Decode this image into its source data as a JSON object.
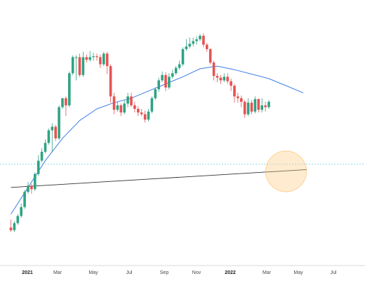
{
  "chart_data": {
    "type": "candlestick",
    "title": "",
    "xlabel": "",
    "ylabel": "",
    "x_ticks": [
      {
        "label": "2021",
        "date": "2021-01",
        "bold": true
      },
      {
        "label": "Mar",
        "date": "2021-03",
        "bold": false
      },
      {
        "label": "May",
        "date": "2021-05",
        "bold": false
      },
      {
        "label": "Jul",
        "date": "2021-07",
        "bold": false
      },
      {
        "label": "Sep",
        "date": "2021-09",
        "bold": false
      },
      {
        "label": "Nov",
        "date": "2021-11",
        "bold": false
      },
      {
        "label": "2022",
        "date": "2022-01",
        "bold": true
      },
      {
        "label": "Mar",
        "date": "2022-03",
        "bold": false
      },
      {
        "label": "May",
        "date": "2022-05",
        "bold": false
      },
      {
        "label": "Jul",
        "date": "2022-07",
        "bold": false
      }
    ],
    "x_range": [
      0,
      81
    ],
    "y_range": [
      0,
      100
    ],
    "candles": [
      [
        -5,
        15,
        12,
        24,
        10
      ],
      [
        -4,
        12,
        20,
        22,
        10
      ],
      [
        -3,
        20,
        28,
        30,
        18
      ],
      [
        -2,
        28,
        38,
        42,
        26
      ],
      [
        -1,
        38,
        55,
        57,
        36
      ],
      [
        0,
        55,
        62,
        66,
        53
      ],
      [
        1,
        62,
        58,
        64,
        53
      ],
      [
        2,
        58,
        75,
        77,
        56
      ],
      [
        3,
        75,
        90,
        96,
        73
      ],
      [
        4,
        90,
        100,
        104,
        88
      ],
      [
        5,
        100,
        110,
        114,
        98
      ],
      [
        6,
        110,
        124,
        126,
        108
      ],
      [
        7,
        124,
        128,
        132,
        100
      ],
      [
        8,
        128,
        115,
        130,
        112
      ],
      [
        9,
        115,
        150,
        152,
        113
      ],
      [
        10,
        150,
        160,
        160,
        148
      ],
      [
        11,
        160,
        152,
        162,
        140
      ],
      [
        12,
        152,
        188,
        190,
        150
      ],
      [
        13,
        188,
        206,
        208,
        186
      ],
      [
        14,
        206,
        206,
        208,
        180
      ],
      [
        15,
        206,
        186,
        210,
        184
      ],
      [
        16,
        186,
        206,
        212,
        184
      ],
      [
        17,
        206,
        203,
        209,
        200
      ],
      [
        18,
        203,
        206,
        213,
        201
      ],
      [
        19,
        206,
        207,
        211,
        202
      ],
      [
        20,
        207,
        206,
        210,
        202
      ],
      [
        21,
        206,
        198,
        209,
        194
      ],
      [
        22,
        198,
        210,
        212,
        196
      ],
      [
        23,
        210,
        196,
        212,
        187
      ],
      [
        24,
        196,
        162,
        198,
        155
      ],
      [
        25,
        162,
        147,
        166,
        142
      ],
      [
        26,
        147,
        152,
        156,
        145
      ],
      [
        27,
        152,
        144,
        154,
        140
      ],
      [
        28,
        144,
        154,
        158,
        142
      ],
      [
        29,
        154,
        162,
        166,
        150
      ],
      [
        30,
        162,
        152,
        166,
        150
      ],
      [
        31,
        152,
        148,
        156,
        144
      ],
      [
        32,
        148,
        144,
        151,
        140
      ],
      [
        33,
        144,
        142,
        148,
        140
      ],
      [
        34,
        142,
        136,
        146,
        133
      ],
      [
        35,
        136,
        145,
        148,
        134
      ],
      [
        36,
        145,
        160,
        162,
        143
      ],
      [
        37,
        160,
        170,
        172,
        158
      ],
      [
        38,
        170,
        180,
        183,
        167
      ],
      [
        39,
        180,
        186,
        190,
        178
      ],
      [
        40,
        186,
        172,
        189,
        168
      ],
      [
        41,
        172,
        184,
        188,
        170
      ],
      [
        42,
        184,
        188,
        192,
        182
      ],
      [
        43,
        188,
        194,
        196,
        186
      ],
      [
        44,
        194,
        198,
        202,
        192
      ],
      [
        45,
        198,
        215,
        217,
        196
      ],
      [
        46,
        215,
        218,
        226,
        213
      ],
      [
        47,
        218,
        221,
        228,
        216
      ],
      [
        48,
        221,
        224,
        228,
        218
      ],
      [
        49,
        224,
        226,
        229,
        220
      ],
      [
        50,
        226,
        230,
        232,
        224
      ],
      [
        51,
        230,
        220,
        233,
        217
      ],
      [
        52,
        220,
        215,
        222,
        212
      ],
      [
        53,
        215,
        200,
        216,
        198
      ],
      [
        54,
        200,
        185,
        202,
        180
      ],
      [
        55,
        185,
        183,
        188,
        178
      ],
      [
        56,
        183,
        180,
        186,
        176
      ],
      [
        57,
        180,
        184,
        188,
        178
      ],
      [
        58,
        184,
        179,
        188,
        176
      ],
      [
        59,
        179,
        174,
        182,
        168
      ],
      [
        60,
        174,
        162,
        176,
        155
      ],
      [
        61,
        162,
        160,
        166,
        155
      ],
      [
        62,
        160,
        156,
        163,
        150
      ],
      [
        63,
        156,
        142,
        158,
        138
      ],
      [
        64,
        142,
        155,
        160,
        140
      ],
      [
        65,
        155,
        145,
        158,
        142
      ],
      [
        66,
        145,
        159,
        162,
        143
      ],
      [
        67,
        159,
        147,
        160,
        144
      ],
      [
        68,
        147,
        152,
        160,
        144
      ],
      [
        69,
        152,
        150,
        156,
        145
      ],
      [
        70,
        150,
        156,
        158,
        148
      ]
    ],
    "moving_average": [
      [
        -5,
        30
      ],
      [
        0,
        60
      ],
      [
        5,
        90
      ],
      [
        10,
        115
      ],
      [
        15,
        135
      ],
      [
        20,
        148
      ],
      [
        25,
        155
      ],
      [
        30,
        160
      ],
      [
        35,
        168
      ],
      [
        40,
        176
      ],
      [
        45,
        184
      ],
      [
        50,
        193
      ],
      [
        55,
        196
      ],
      [
        60,
        192
      ],
      [
        65,
        187
      ],
      [
        70,
        182
      ],
      [
        75,
        174
      ],
      [
        80,
        166
      ]
    ],
    "trend_line": [
      [
        -5,
        60
      ],
      [
        81,
        80
      ]
    ],
    "horizontal_level": 86,
    "highlight_circle": {
      "x": 75,
      "y": 78
    }
  }
}
